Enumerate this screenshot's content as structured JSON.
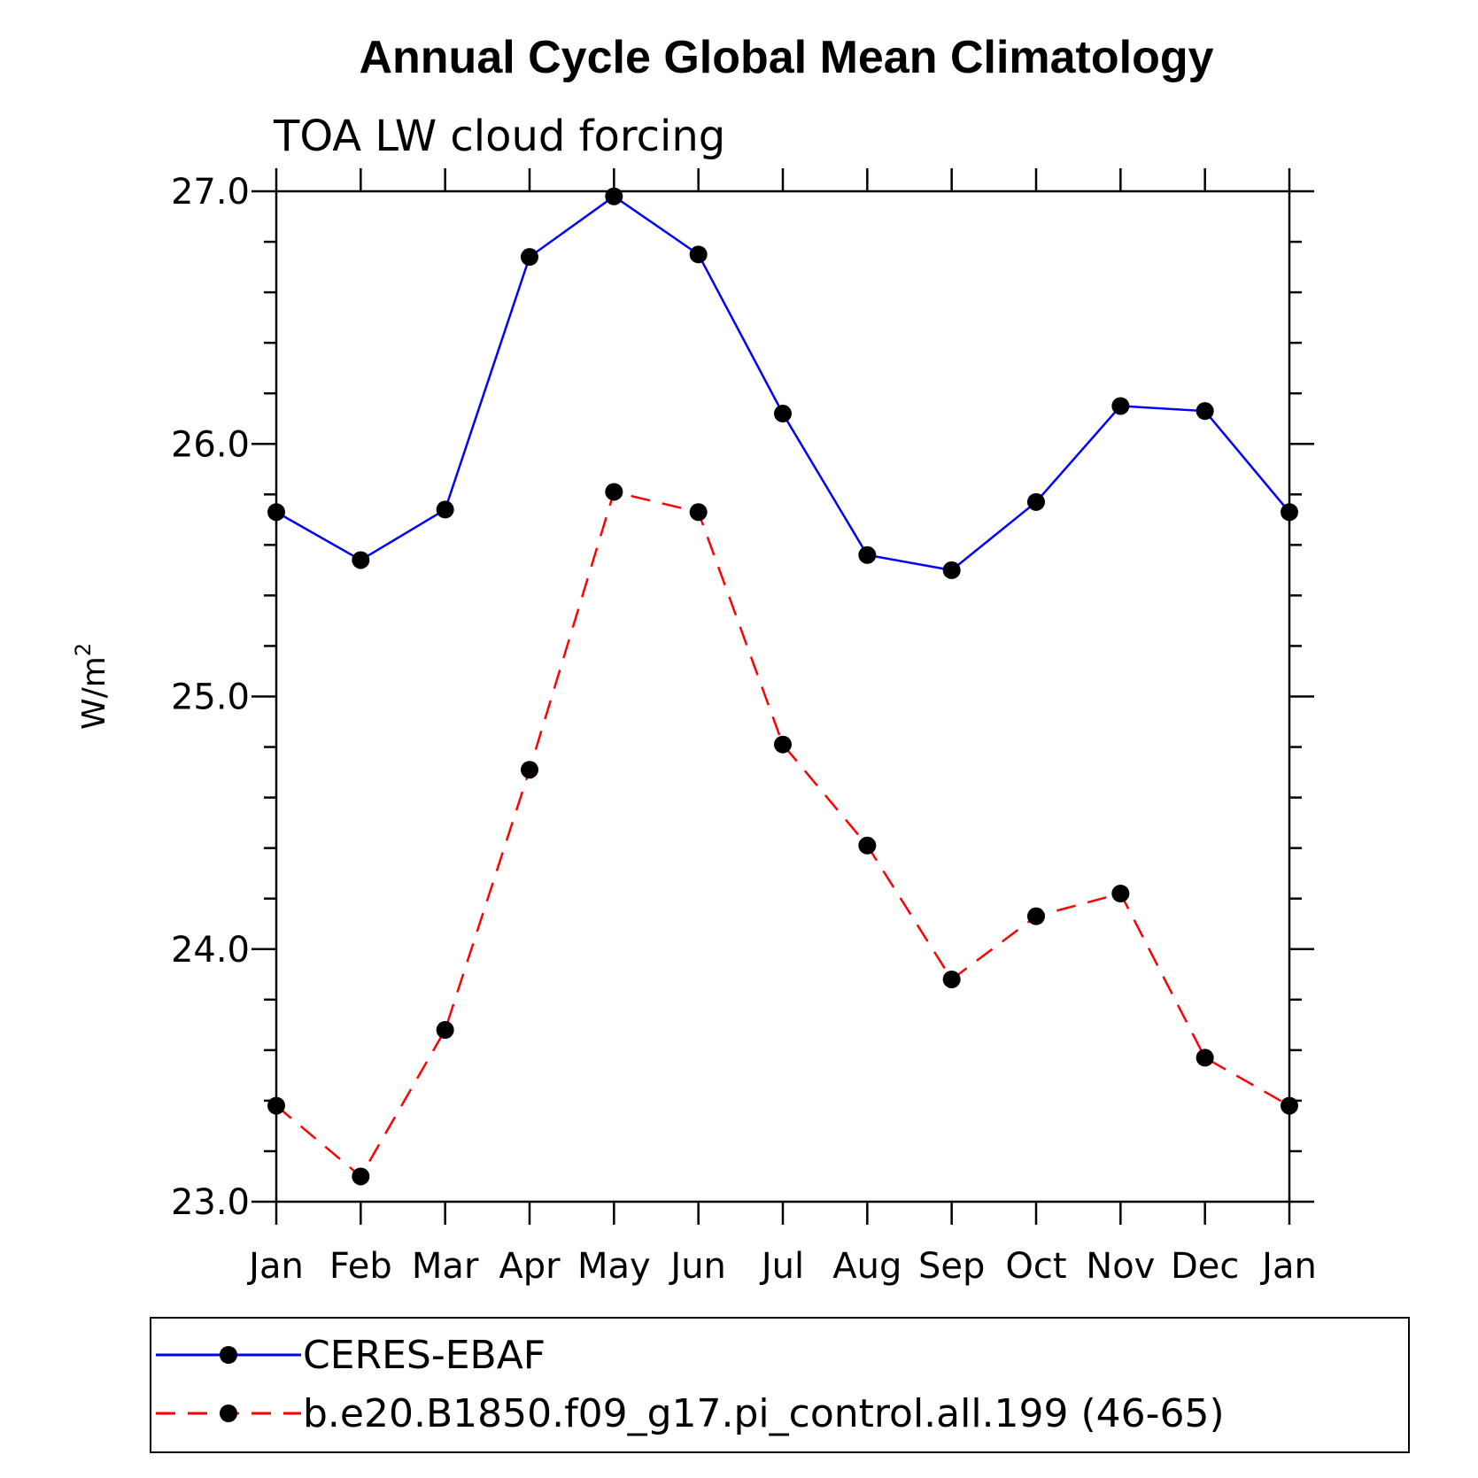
{
  "chart_data": {
    "type": "line",
    "title": "Annual Cycle Global Mean Climatology",
    "subtitle": "TOA LW cloud forcing",
    "ylabel_base": "W/m",
    "ylabel_sup": "2",
    "ylim": [
      23.0,
      27.0
    ],
    "yticks": [
      "23.0",
      "24.0",
      "25.0",
      "26.0",
      "27.0"
    ],
    "categories": [
      "Jan",
      "Feb",
      "Mar",
      "Apr",
      "May",
      "Jun",
      "Jul",
      "Aug",
      "Sep",
      "Oct",
      "Nov",
      "Dec",
      "Jan"
    ],
    "series": [
      {
        "name": "CERES-EBAF",
        "color": "#0000ff",
        "dash": "solid",
        "values": [
          25.73,
          25.54,
          25.74,
          26.74,
          26.98,
          26.75,
          26.12,
          25.56,
          25.5,
          25.77,
          26.15,
          26.13,
          25.73
        ]
      },
      {
        "name": "b.e20.B1850.f09_g17.pi_control.all.199 (46-65)",
        "color": "#ff0000",
        "dash": "dashed",
        "values": [
          23.38,
          23.1,
          23.68,
          24.71,
          25.81,
          25.73,
          24.81,
          24.41,
          23.88,
          24.13,
          24.22,
          23.57,
          23.38
        ]
      }
    ],
    "legend_position": "bottom"
  }
}
